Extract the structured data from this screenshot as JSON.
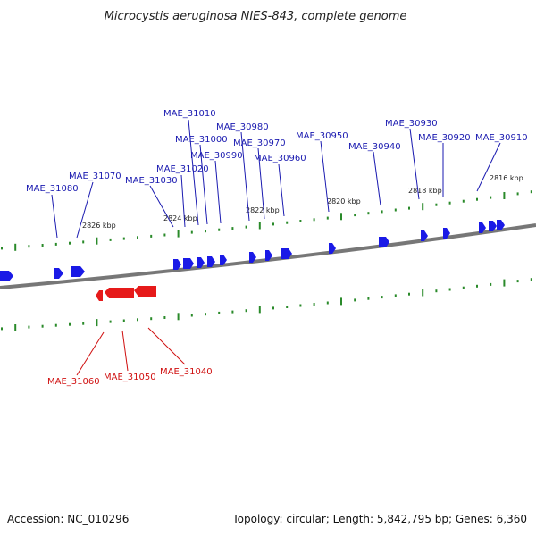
{
  "title": "Microcystis aeruginosa NIES-843, complete genome",
  "footer": {
    "accession": "Accession: NC_010296",
    "summary": "Topology: circular; Length: 5,842,795 bp; Genes: 6,360"
  },
  "colors": {
    "forward": "#1a1ae6",
    "reverse": "#e61a1a",
    "tick": "#2a8a2a",
    "backbone": "#777777",
    "label_forward": "#1a1ab0",
    "label_reverse": "#d01010"
  },
  "scale_labels": [
    "2826 kbp",
    "2824 kbp",
    "2822 kbp",
    "2820 kbp",
    "2818 kbp",
    "2816 kbp"
  ],
  "genes": {
    "forward": [
      "MAE_31080",
      "MAE_31070",
      "MAE_31030",
      "MAE_31020",
      "MAE_31010",
      "MAE_31000",
      "MAE_30990",
      "MAE_30980",
      "MAE_30970",
      "MAE_30960",
      "MAE_30950",
      "MAE_30940",
      "MAE_30930",
      "MAE_30920",
      "MAE_30910"
    ],
    "reverse": [
      "MAE_31060",
      "MAE_31050",
      "MAE_31040"
    ]
  }
}
